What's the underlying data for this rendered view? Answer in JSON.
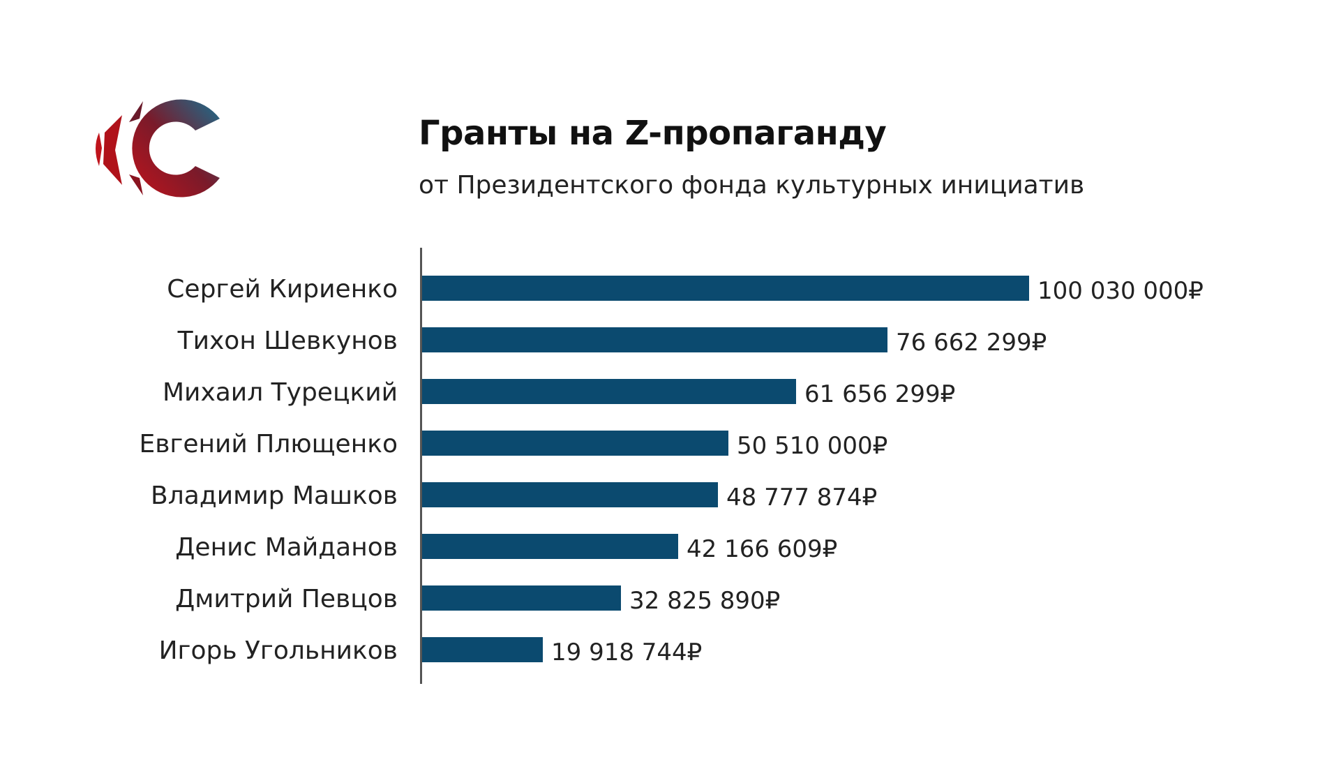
{
  "header": {
    "title": "Гранты на Z-пропаганду",
    "subtitle": "от Президентского фонда культурных инициатив"
  },
  "logo": {
    "icon": "c-swoosh-logo-icon",
    "colors": [
      "#c0141c",
      "#1a6f8f"
    ]
  },
  "colors": {
    "bar": "#0b4a6f",
    "axis": "#555555",
    "text": "#222222"
  },
  "chart_data": {
    "type": "bar",
    "orientation": "horizontal",
    "title": "Гранты на Z-пропаганду",
    "subtitle": "от Президентского фонда культурных инициатив",
    "xlabel": "",
    "ylabel": "",
    "grid": false,
    "legend": null,
    "categories": [
      "Сергей Кириенко",
      "Тихон Шевкунов",
      "Михаил Турецкий",
      "Евгений Плющенко",
      "Владимир Машков",
      "Денис Майданов",
      "Дмитрий Певцов",
      "Игорь Угольников"
    ],
    "values": [
      100030000,
      76662299,
      61656299,
      50510000,
      48777874,
      42166609,
      32825890,
      19918744
    ],
    "value_labels": [
      "100 030 000₽",
      "76 662 299₽",
      "61 656 299₽",
      "50 510 000₽",
      "48 777 874₽",
      "42 166 609₽",
      "32 825 890₽",
      "19 918 744₽"
    ],
    "xlim": [
      0,
      100030000
    ],
    "unit": "₽"
  }
}
